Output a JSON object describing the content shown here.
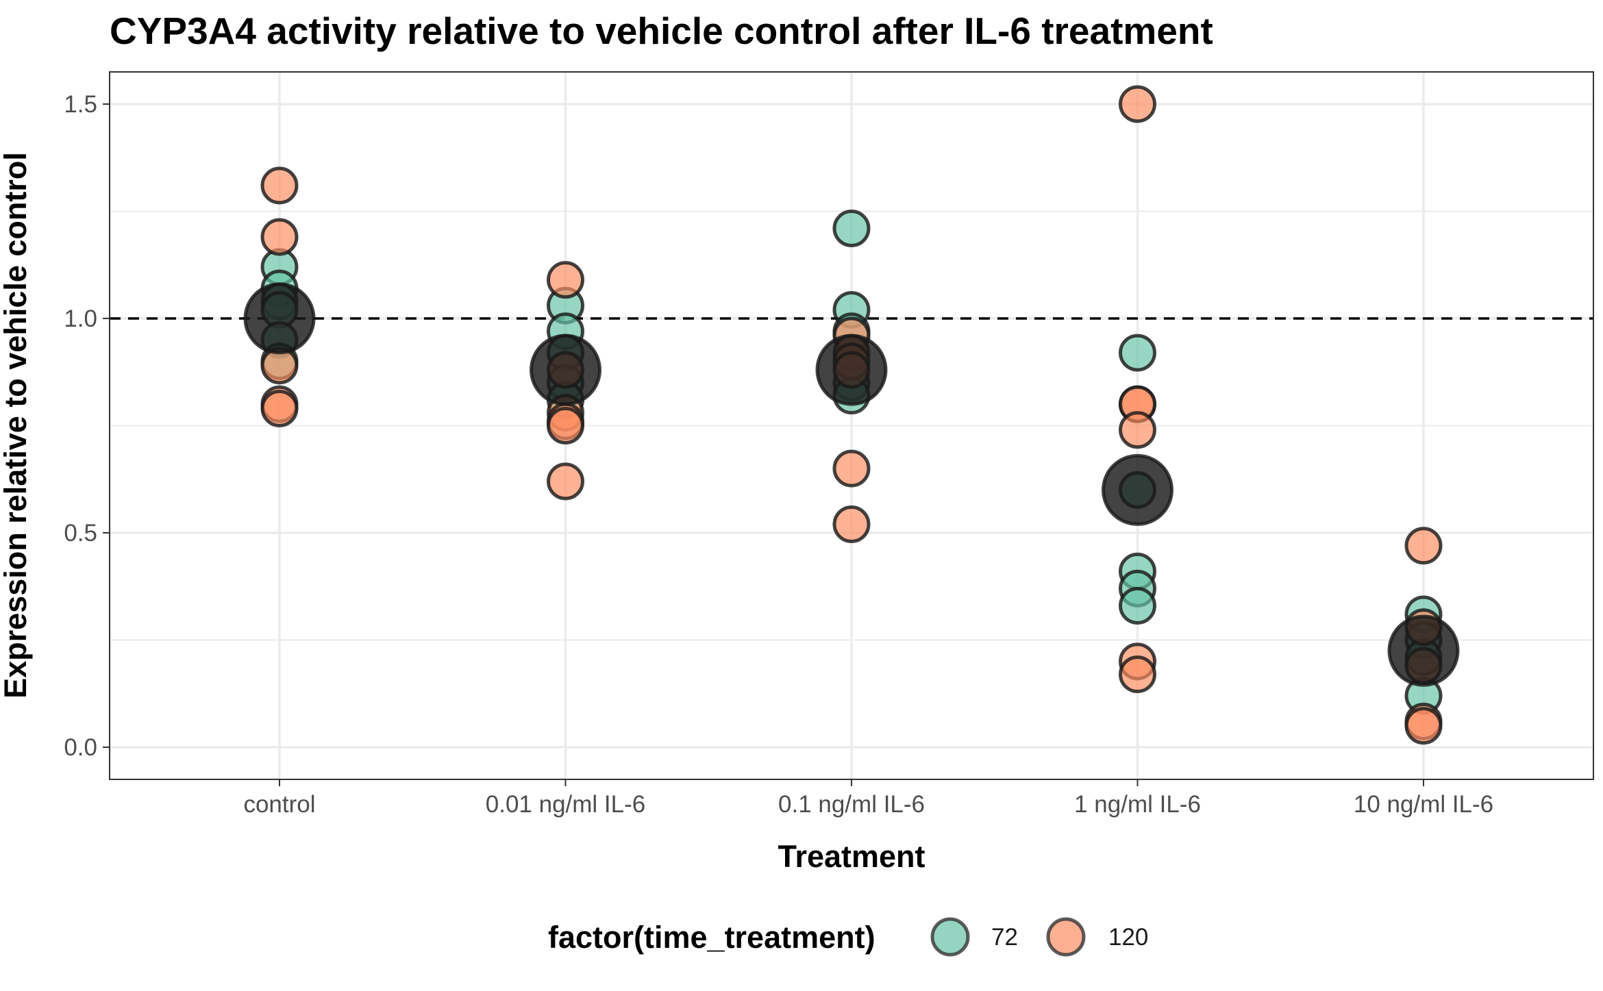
{
  "chart_data": {
    "type": "scatter",
    "title": "CYP3A4 activity relative to vehicle control after IL-6 treatment",
    "xlabel": "Treatment",
    "ylabel": "Expression relative to vehicle control",
    "categories": [
      "control",
      "0.01 ng/ml IL-6",
      "0.1 ng/ml IL-6",
      "1 ng/ml IL-6",
      "10 ng/ml IL-6"
    ],
    "ylim": [
      -0.075,
      1.575
    ],
    "yticks": [
      0.0,
      0.5,
      1.0,
      1.5
    ],
    "ytick_labels": [
      "0.0",
      "0.5",
      "1.0",
      "1.5"
    ],
    "reference_line": 1.0,
    "grid": true,
    "legend": {
      "title": "factor(time_treatment)",
      "position": "bottom",
      "entries": [
        {
          "label": "72",
          "color": "#66c2a5"
        },
        {
          "label": "120",
          "color": "#fc8d62"
        }
      ]
    },
    "series": [
      {
        "name": "72",
        "color": "#66c2a5",
        "points": [
          {
            "x": "control",
            "y": 1.12
          },
          {
            "x": "control",
            "y": 1.07
          },
          {
            "x": "control",
            "y": 1.04
          },
          {
            "x": "control",
            "y": 1.02
          },
          {
            "x": "control",
            "y": 0.95
          },
          {
            "x": "control",
            "y": 0.9
          },
          {
            "x": "0.01 ng/ml IL-6",
            "y": 1.03
          },
          {
            "x": "0.01 ng/ml IL-6",
            "y": 0.97
          },
          {
            "x": "0.01 ng/ml IL-6",
            "y": 0.92
          },
          {
            "x": "0.01 ng/ml IL-6",
            "y": 0.85
          },
          {
            "x": "0.01 ng/ml IL-6",
            "y": 0.81
          },
          {
            "x": "0.1 ng/ml IL-6",
            "y": 1.21
          },
          {
            "x": "0.1 ng/ml IL-6",
            "y": 1.02
          },
          {
            "x": "0.1 ng/ml IL-6",
            "y": 0.97
          },
          {
            "x": "0.1 ng/ml IL-6",
            "y": 0.85
          },
          {
            "x": "0.1 ng/ml IL-6",
            "y": 0.82
          },
          {
            "x": "1 ng/ml IL-6",
            "y": 0.92
          },
          {
            "x": "1 ng/ml IL-6",
            "y": 0.6
          },
          {
            "x": "1 ng/ml IL-6",
            "y": 0.41
          },
          {
            "x": "1 ng/ml IL-6",
            "y": 0.37
          },
          {
            "x": "1 ng/ml IL-6",
            "y": 0.33
          },
          {
            "x": "10 ng/ml IL-6",
            "y": 0.31
          },
          {
            "x": "10 ng/ml IL-6",
            "y": 0.25
          },
          {
            "x": "10 ng/ml IL-6",
            "y": 0.21
          },
          {
            "x": "10 ng/ml IL-6",
            "y": 0.12
          }
        ]
      },
      {
        "name": "120",
        "color": "#fc8d62",
        "points": [
          {
            "x": "control",
            "y": 1.31
          },
          {
            "x": "control",
            "y": 1.19
          },
          {
            "x": "control",
            "y": 0.89
          },
          {
            "x": "control",
            "y": 0.8
          },
          {
            "x": "control",
            "y": 0.79
          },
          {
            "x": "0.01 ng/ml IL-6",
            "y": 1.09
          },
          {
            "x": "0.01 ng/ml IL-6",
            "y": 0.88
          },
          {
            "x": "0.01 ng/ml IL-6",
            "y": 0.78
          },
          {
            "x": "0.01 ng/ml IL-6",
            "y": 0.76
          },
          {
            "x": "0.01 ng/ml IL-6",
            "y": 0.75
          },
          {
            "x": "0.01 ng/ml IL-6",
            "y": 0.62
          },
          {
            "x": "0.1 ng/ml IL-6",
            "y": 0.96
          },
          {
            "x": "0.1 ng/ml IL-6",
            "y": 0.92
          },
          {
            "x": "0.1 ng/ml IL-6",
            "y": 0.9
          },
          {
            "x": "0.1 ng/ml IL-6",
            "y": 0.88
          },
          {
            "x": "0.1 ng/ml IL-6",
            "y": 0.65
          },
          {
            "x": "0.1 ng/ml IL-6",
            "y": 0.52
          },
          {
            "x": "1 ng/ml IL-6",
            "y": 1.5
          },
          {
            "x": "1 ng/ml IL-6",
            "y": 0.8
          },
          {
            "x": "1 ng/ml IL-6",
            "y": 0.8
          },
          {
            "x": "1 ng/ml IL-6",
            "y": 0.74
          },
          {
            "x": "1 ng/ml IL-6",
            "y": 0.2
          },
          {
            "x": "1 ng/ml IL-6",
            "y": 0.17
          },
          {
            "x": "10 ng/ml IL-6",
            "y": 0.47
          },
          {
            "x": "10 ng/ml IL-6",
            "y": 0.28
          },
          {
            "x": "10 ng/ml IL-6",
            "y": 0.19
          },
          {
            "x": "10 ng/ml IL-6",
            "y": 0.06
          },
          {
            "x": "10 ng/ml IL-6",
            "y": 0.05
          }
        ]
      },
      {
        "name": "",
        "color": "#1a1a1a",
        "points": [
          {
            "x": "control",
            "y": 1.0
          },
          {
            "x": "0.01 ng/ml IL-6",
            "y": 0.88
          },
          {
            "x": "0.1 ng/ml IL-6",
            "y": 0.88
          },
          {
            "x": "1 ng/ml IL-6",
            "y": 0.6
          },
          {
            "x": "10 ng/ml IL-6",
            "y": 0.225
          }
        ]
      }
    ]
  }
}
